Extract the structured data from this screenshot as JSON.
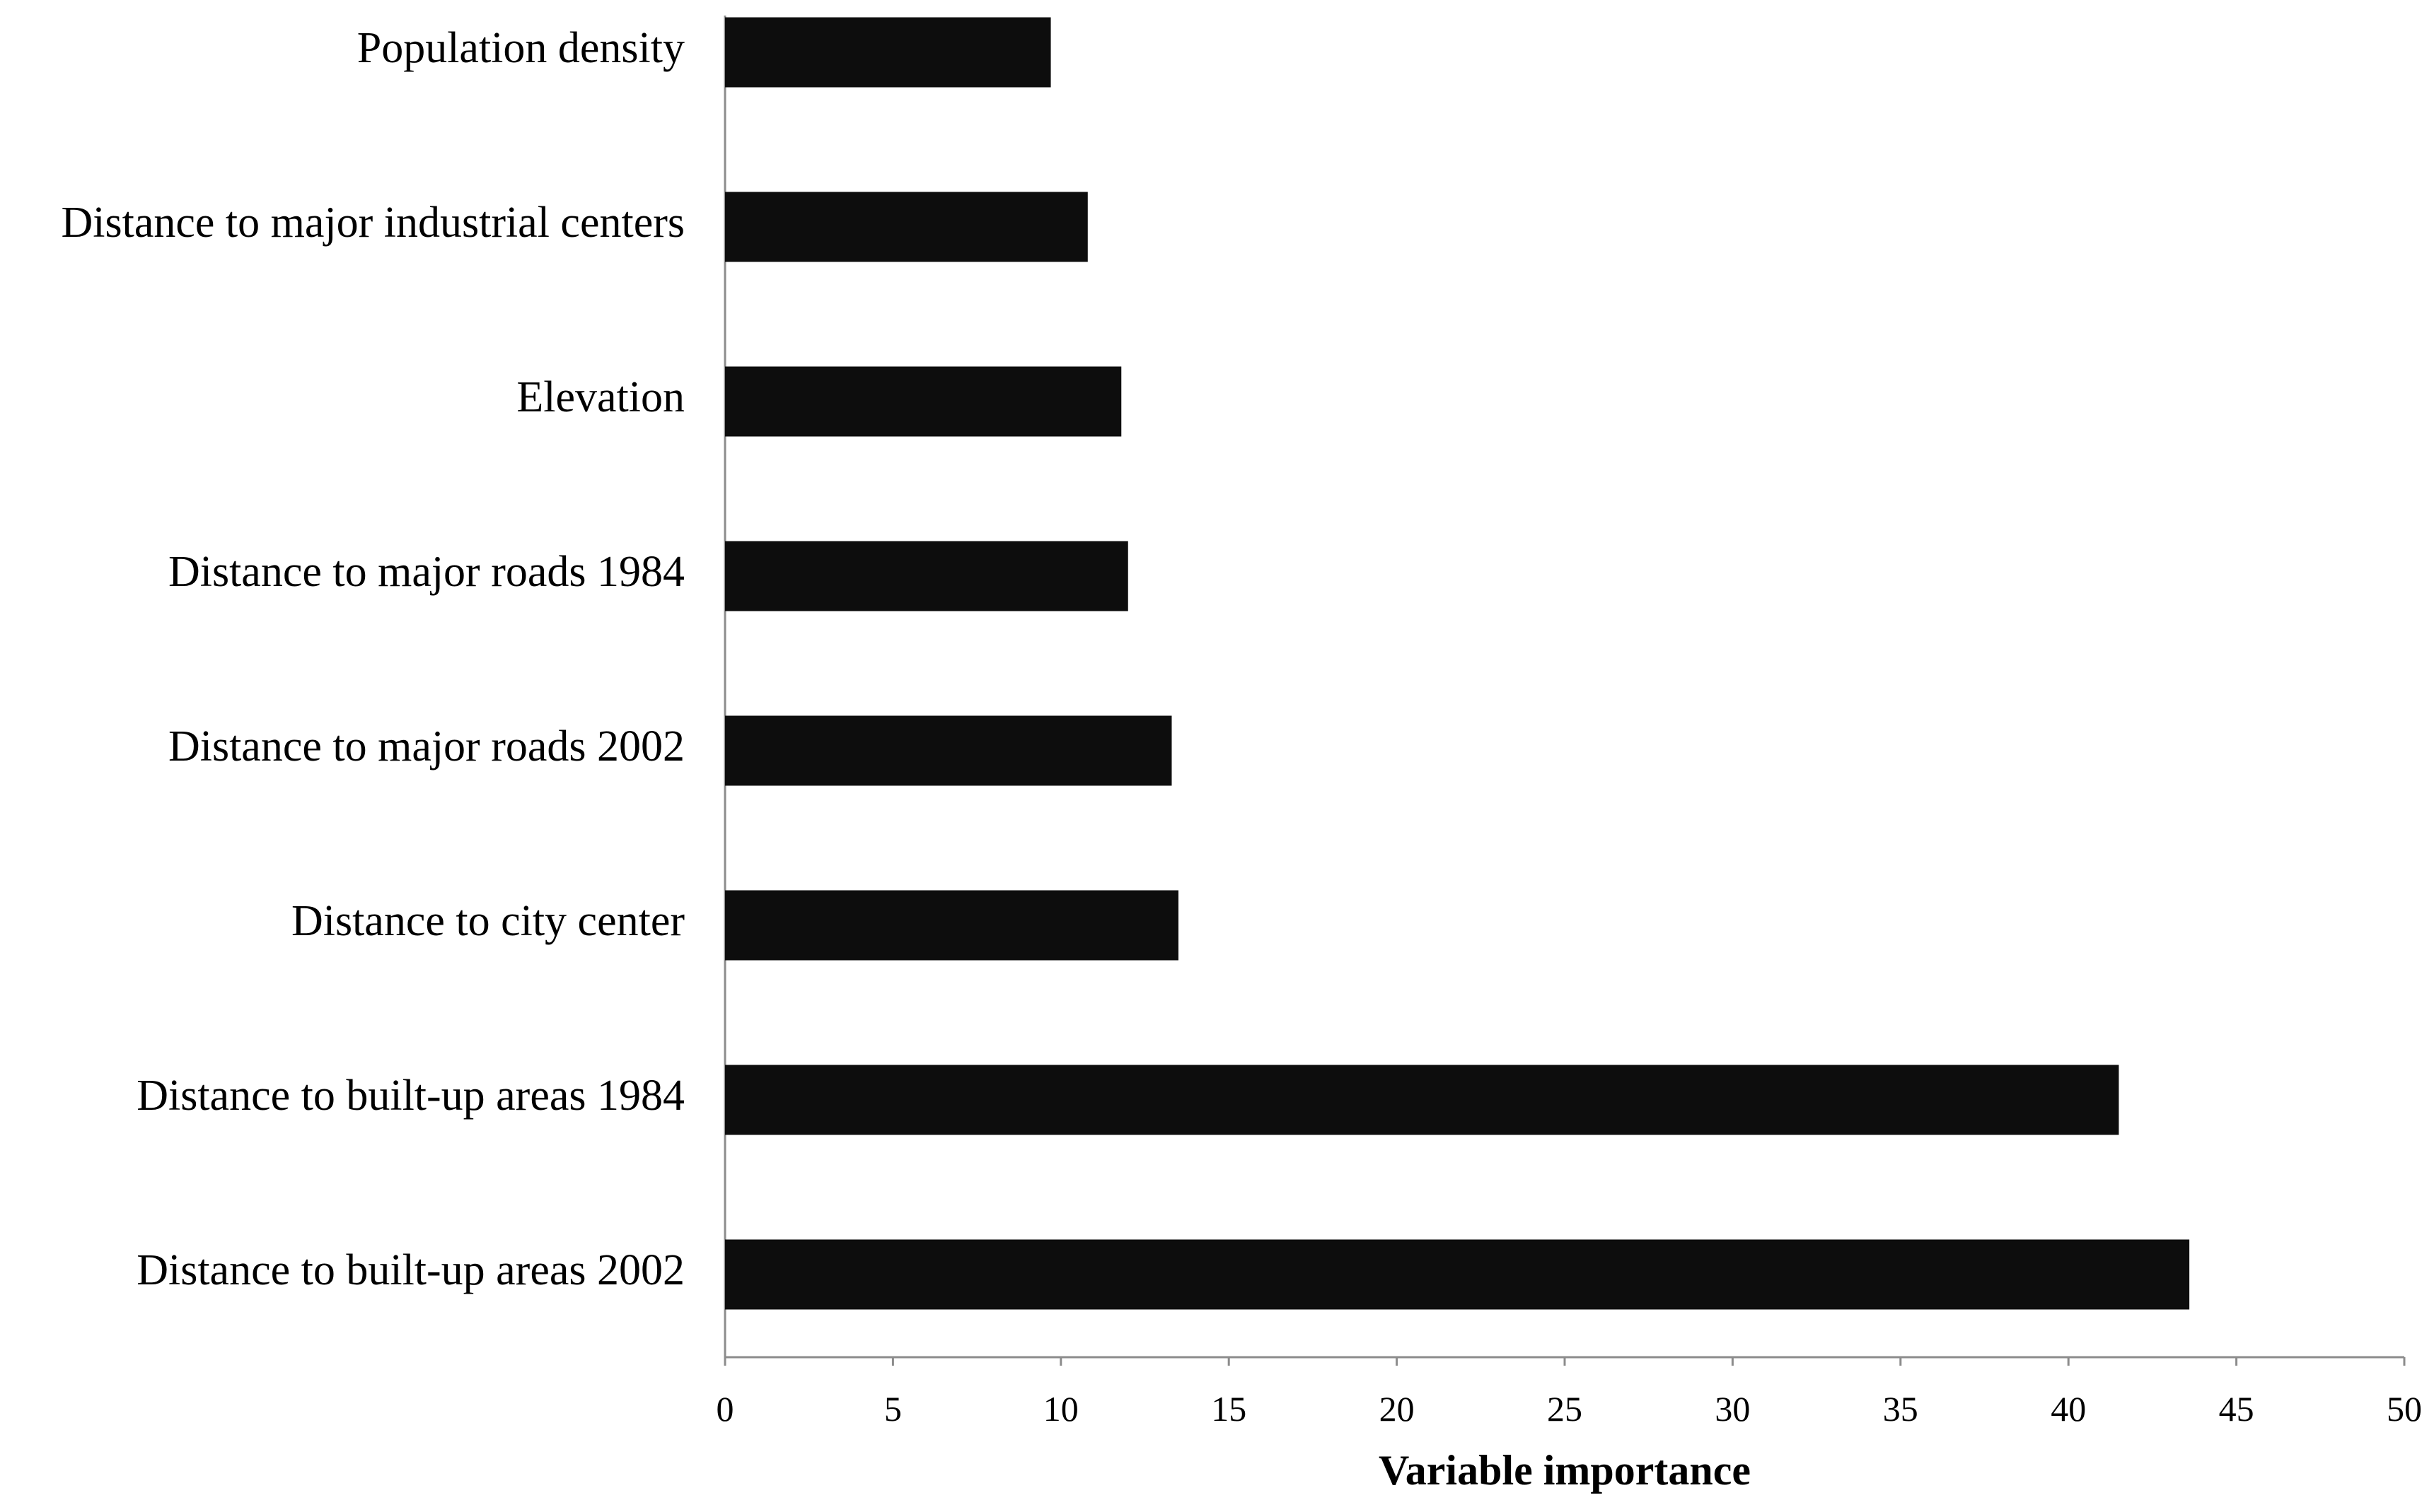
{
  "chart_data": {
    "type": "bar",
    "orientation": "horizontal",
    "categories": [
      "Population density",
      "Distance to major industrial centers",
      "Elevation",
      "Distance to major roads 1984",
      "Distance to major roads 2002",
      "Distance to city center",
      "Distance to built-up areas 1984",
      "Distance to built-up areas 2002"
    ],
    "values": [
      9.7,
      10.8,
      11.8,
      12.0,
      13.3,
      13.5,
      41.5,
      43.6
    ],
    "title": "",
    "xlabel": "Variable importance",
    "ylabel": "",
    "xlim": [
      0,
      50
    ],
    "xticks": [
      "0",
      "5",
      "10",
      "15",
      "20",
      "25",
      "30",
      "35",
      "40",
      "45",
      "50"
    ],
    "grid": false,
    "legend": "none",
    "bar_color": "#0d0d0d",
    "axis_color": "#8c8c8c"
  }
}
